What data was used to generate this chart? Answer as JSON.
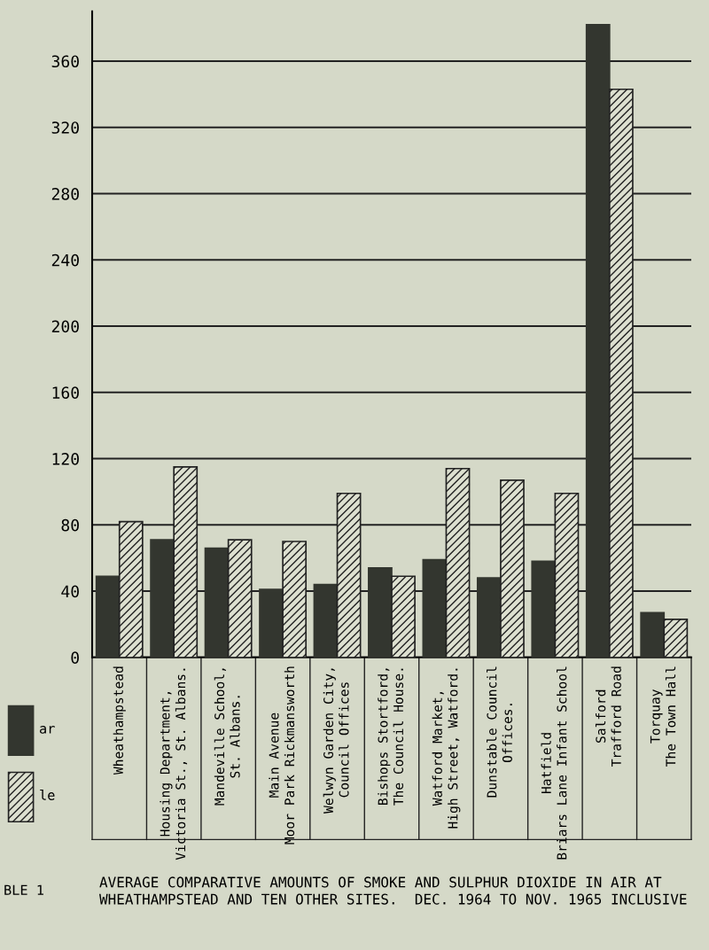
{
  "chart_data": {
    "type": "bar",
    "title": "AVERAGE COMPARATIVE AMOUNTS OF SMOKE AND SULPHUR DIOXIDE IN AIR AT\nWHEATHAMPSTEAD AND TEN OTHER SITES.  DEC. 1964 TO NOV. 1965 INCLUSIVE",
    "categories": [
      "Wheathampstead",
      "Housing Department,\nVictoria St., St. Albans.",
      "Mandeville School,\nSt. Albans.",
      "Main Avenue\nMoor Park Rickmansworth",
      "Welwyn Garden City,\nCouncil Offices",
      "Bishops Stortford,\nThe Council House.",
      "Watford Market,\nHigh Street, Watford.",
      "Dunstable Council\nOffices.",
      "Hatfield\nBriars Lane Infant School",
      "Salford\nTrafford Road",
      "Torquay\nThe Town Hall"
    ],
    "series": [
      {
        "color": "#33362f",
        "values": [
          49,
          71,
          66,
          41,
          44,
          54,
          59,
          48,
          58,
          382,
          27
        ]
      },
      {
        "color": "#222222",
        "values": [
          82,
          115,
          71,
          70,
          99,
          49,
          114,
          107,
          99,
          343,
          23
        ]
      }
    ],
    "ylim": [
      0,
      390
    ],
    "yticks": [
      0,
      40,
      80,
      120,
      160,
      200,
      240,
      280,
      320,
      360
    ],
    "grid": "y",
    "annotations": [
      "ar",
      "le",
      "BLE 1"
    ]
  }
}
